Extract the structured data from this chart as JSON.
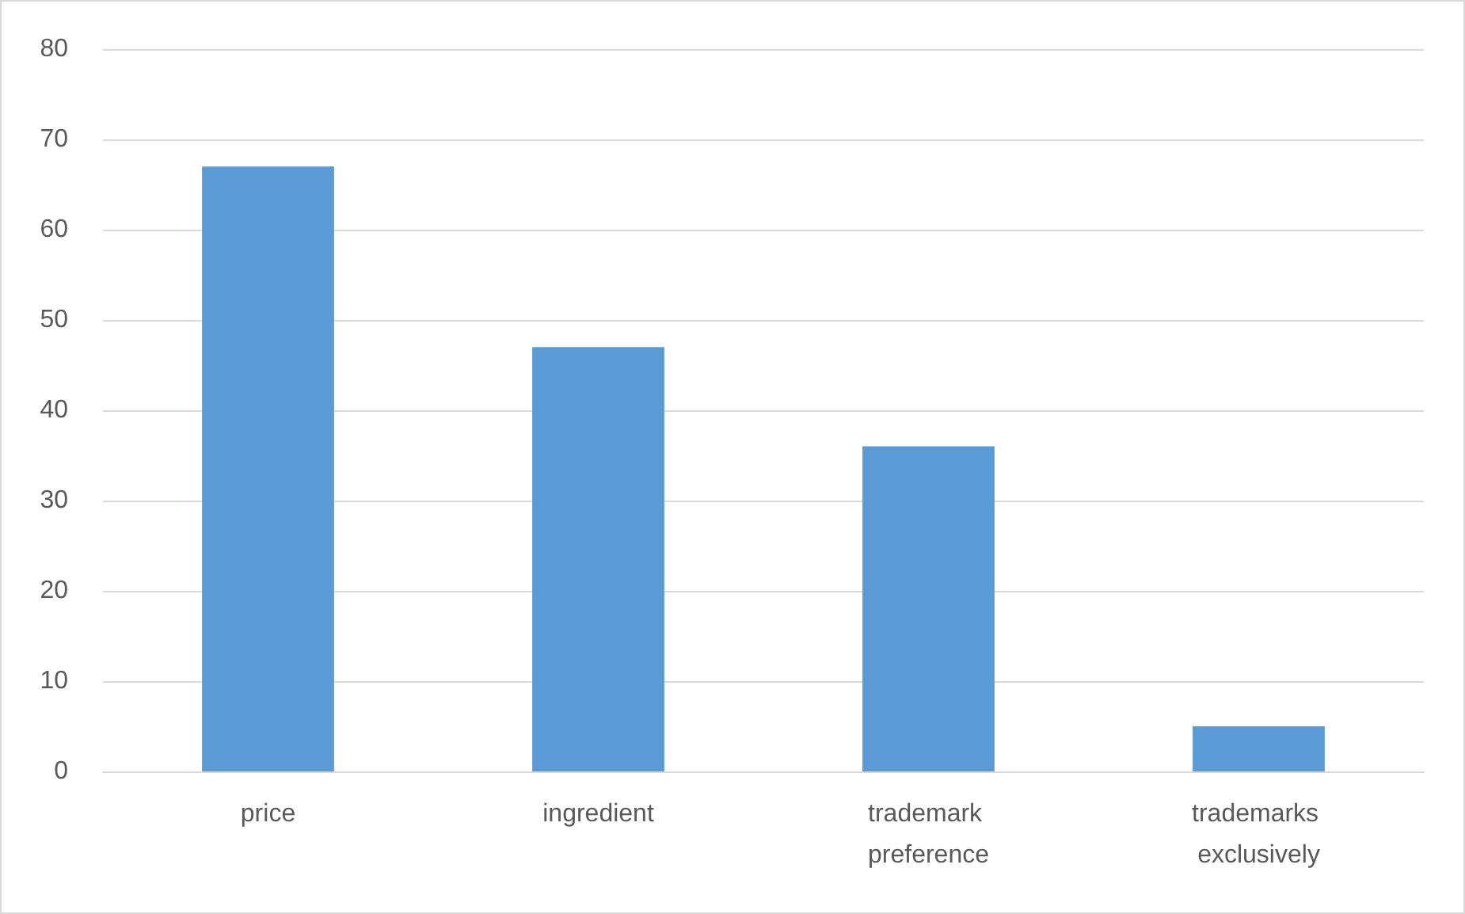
{
  "chart_data": {
    "type": "bar",
    "categories": [
      "price",
      "ingredient",
      "trademark preference",
      "trademarks exclusively"
    ],
    "values": [
      67,
      47,
      36,
      5
    ],
    "color": "#5b9bd5",
    "ylim": [
      0,
      80
    ],
    "yticks": [
      0,
      10,
      20,
      30,
      40,
      50,
      60,
      70,
      80
    ],
    "grid": "y"
  }
}
